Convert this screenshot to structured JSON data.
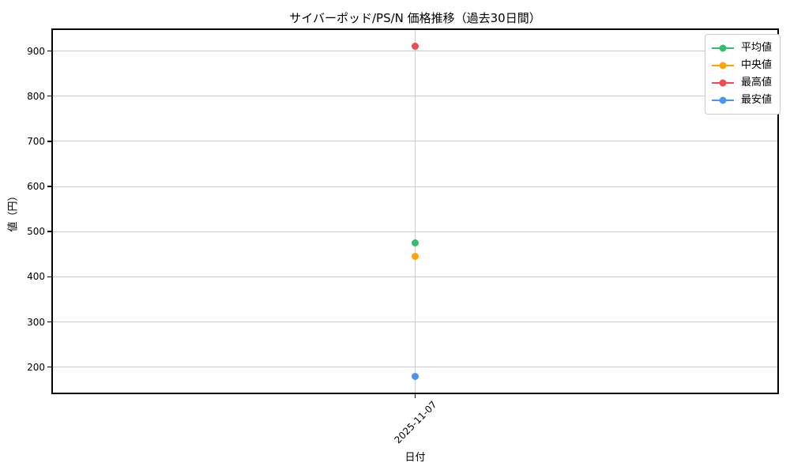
{
  "chart_data": {
    "type": "line",
    "title": "サイバーポッド/PS/N 価格推移（過去30日間）",
    "xlabel": "日付",
    "ylabel": "値（円）",
    "x": [
      "2025-11-07"
    ],
    "series": [
      {
        "name": "平均値",
        "color": "#2ebe6e",
        "values": [
          475
        ]
      },
      {
        "name": "中央値",
        "color": "#ffa502",
        "values": [
          445
        ]
      },
      {
        "name": "最高値",
        "color": "#f4494d",
        "values": [
          910
        ]
      },
      {
        "name": "最安値",
        "color": "#4d93f2",
        "values": [
          180
        ]
      }
    ],
    "ylim": [
      143.5,
      946.5
    ],
    "yticks": [
      200,
      300,
      400,
      500,
      600,
      700,
      800,
      900
    ],
    "grid": true,
    "legend_position": "upper right",
    "marker": "circle"
  },
  "colors": {
    "grid": "#cccccc",
    "spine": "#000000",
    "background": "#ffffff",
    "text": "#000000",
    "legend_border": "#cccccc"
  }
}
